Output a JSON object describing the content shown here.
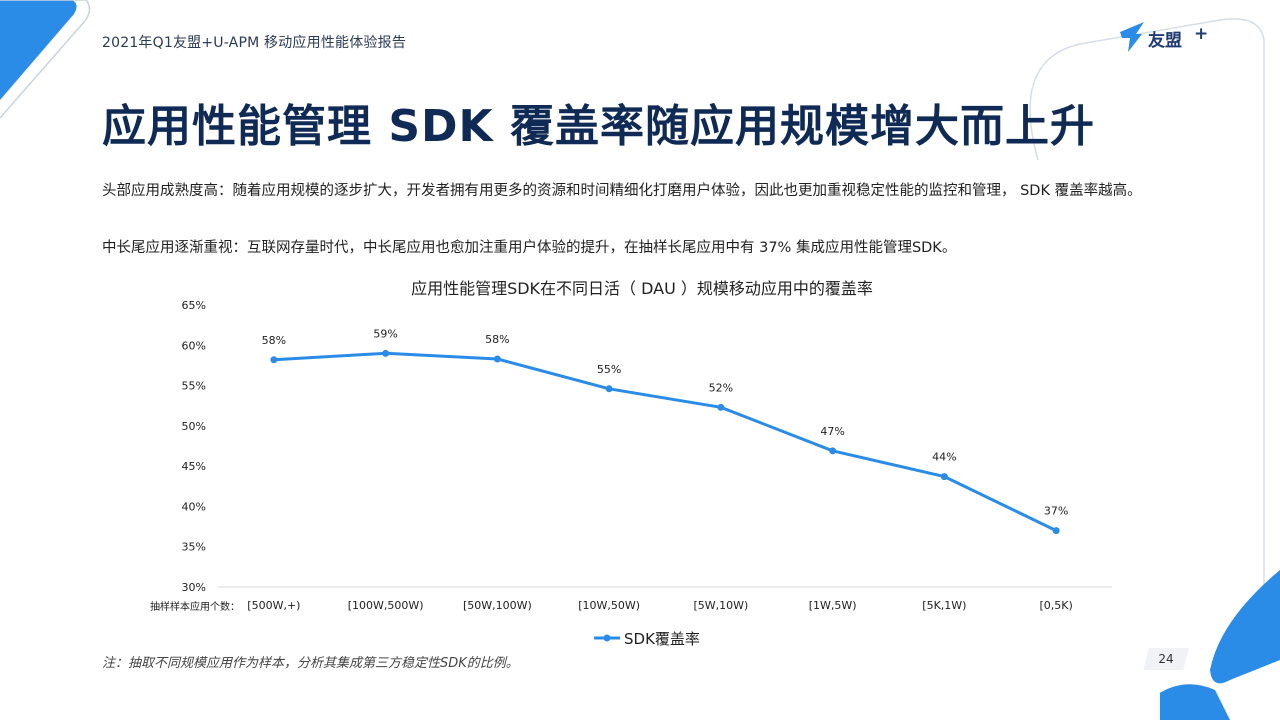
{
  "header": {
    "report_title": "2021年Q1友盟+U-APM 移动应用性能体验报告",
    "brand_name": "友盟",
    "brand_plus": "+"
  },
  "main": {
    "title": "应用性能管理 SDK 覆盖率随应用规模增大而上升",
    "paragraph1": "头部应用成熟度高：随着应用规模的逐步扩大，开发者拥有用更多的资源和时间精细化打磨用户体验，因此也更加重视稳定性能的监控和管理， SDK 覆盖率越高。",
    "paragraph2": "中长尾应用逐渐重视：互联网存量时代，中长尾应用也愈加注重用户体验的提升，在抽样长尾应用中有 37% 集成应用性能管理SDK。"
  },
  "footer": {
    "note": "注：抽取不同规模应用作为样本，分析其集成第三方稳定性SDK的比例。",
    "page_number": "24"
  },
  "colors": {
    "accent": "#2b8ce8",
    "title": "#0f2a55"
  },
  "chart_data": {
    "type": "line",
    "title": "应用性能管理SDK在不同日活（ DAU ）规模移动应用中的覆盖率",
    "xlabel": "抽样样本应用个数：",
    "ylabel": "",
    "categories": [
      "[500W,+)",
      "[100W,500W)",
      "[50W,100W)",
      "[10W,50W)",
      "[5W,10W)",
      "[1W,5W)",
      "[5K,1W)",
      "[0,5K)"
    ],
    "series": [
      {
        "name": "SDK覆盖率",
        "values": [
          58.2,
          59.0,
          58.3,
          54.6,
          52.3,
          46.9,
          43.7,
          37.0
        ],
        "labels": [
          "58%",
          "59%",
          "58%",
          "55%",
          "52%",
          "47%",
          "44%",
          "37%"
        ],
        "color": "#2b8ce8"
      }
    ],
    "ylim": [
      30,
      65
    ],
    "yticks": [
      30,
      35,
      40,
      45,
      50,
      55,
      60,
      65
    ],
    "ytick_labels": [
      "30%",
      "35%",
      "40%",
      "45%",
      "50%",
      "55%",
      "60%",
      "65%"
    ],
    "grid": false,
    "legend": "bottom"
  }
}
